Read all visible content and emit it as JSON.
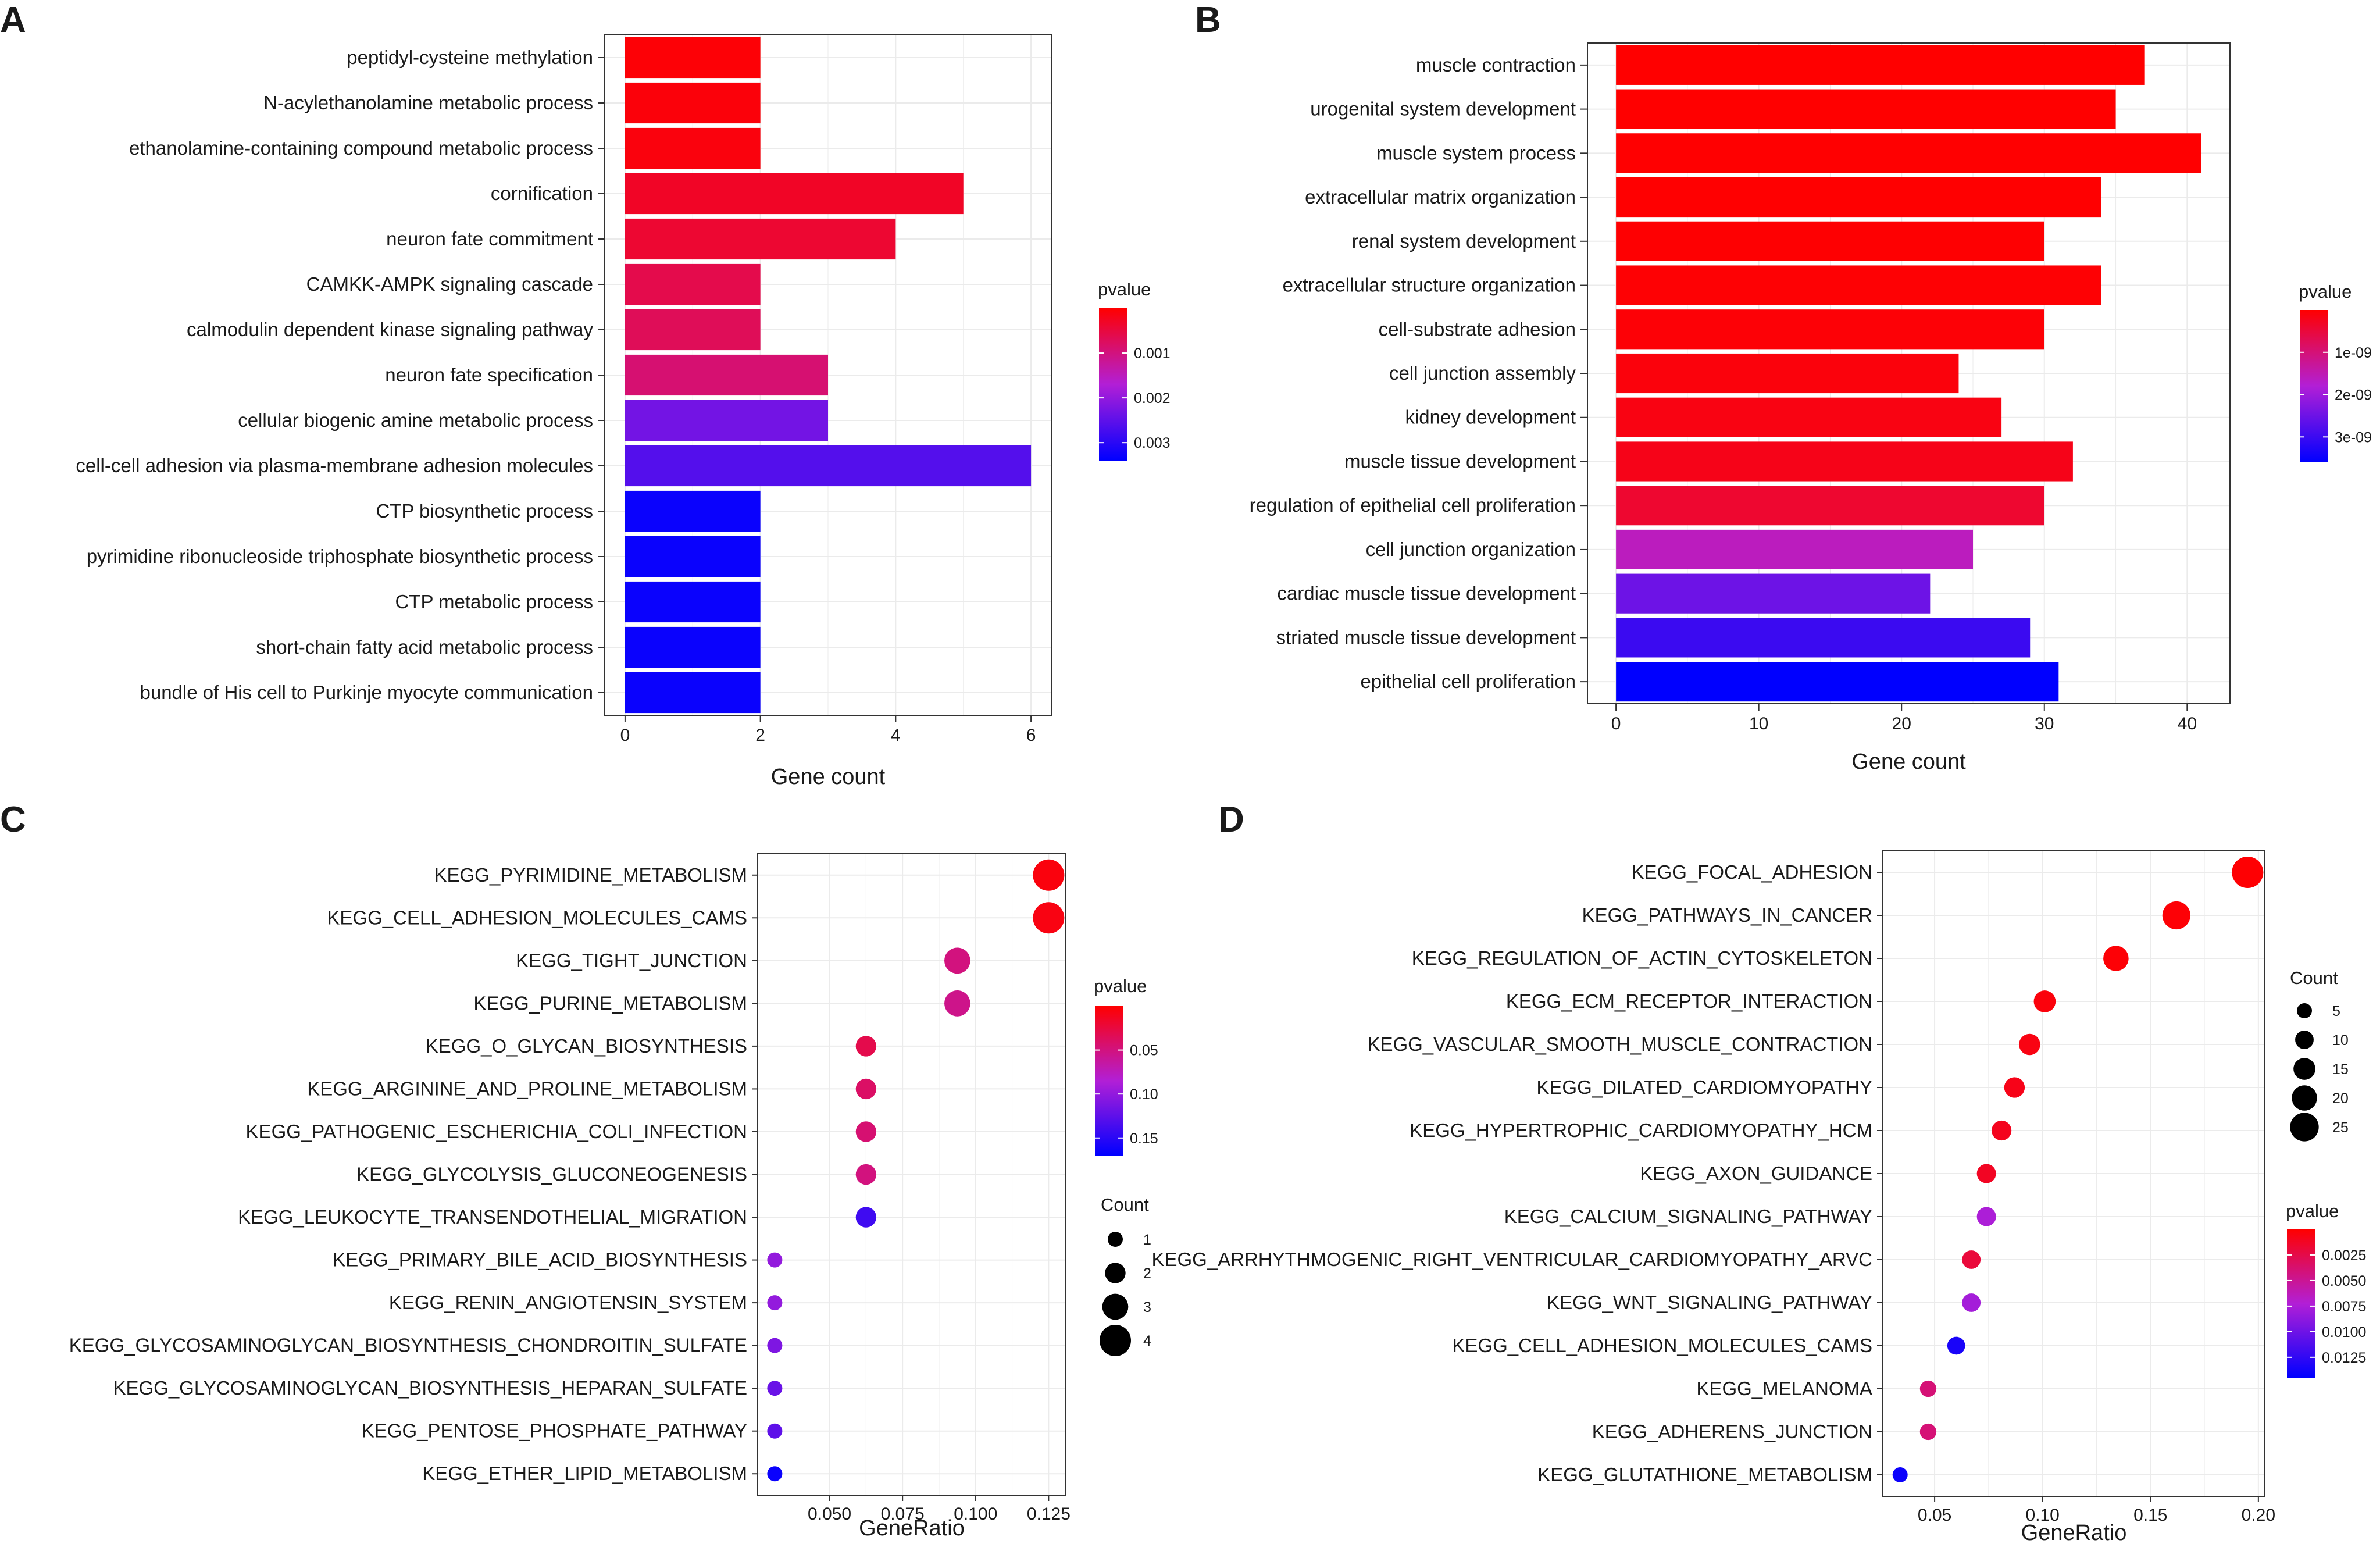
{
  "figure": {
    "panel_letters": [
      "A",
      "B",
      "C",
      "D"
    ]
  },
  "colors": {
    "low_pvalue": "#ff0000",
    "mid_pvalue": "#b21fd6",
    "high_pvalue": "#0000ff",
    "grid": "#ebebeb",
    "panel_border": "#333333"
  },
  "chart_data": [
    {
      "panel": "A",
      "type": "bar",
      "orientation": "horizontal",
      "categories": [
        "peptidyl-cysteine methylation",
        "N-acylethanolamine metabolic process",
        "ethanolamine-containing compound metabolic process",
        "cornification",
        "neuron fate commitment",
        "CAMKK-AMPK signaling cascade",
        "calmodulin dependent kinase signaling pathway",
        "neuron fate specification",
        "cellular biogenic amine metabolic process",
        "cell-cell adhesion via plasma-membrane adhesion molecules",
        "CTP biosynthetic process",
        "pyrimidine ribonucleoside triphosphate biosynthetic process",
        "CTP metabolic process",
        "short-chain fatty acid metabolic process",
        "bundle of His cell to Purkinje myocyte communication"
      ],
      "values": [
        2,
        2,
        2,
        5,
        4,
        2,
        2,
        3,
        3,
        6,
        2,
        2,
        2,
        2,
        2
      ],
      "pvalues": [
        5e-05,
        8e-05,
        0.0001,
        0.0003,
        0.0004,
        0.0006,
        0.0007,
        0.0009,
        0.0023,
        0.0026,
        0.0033,
        0.0033,
        0.0033,
        0.0033,
        0.0033
      ],
      "xlabel": "Gene count",
      "xlim": [
        -0.3,
        6.3
      ],
      "xticks": [
        0,
        2,
        4,
        6
      ],
      "xtick_labels": [
        "0",
        "2",
        "4",
        "6"
      ],
      "legend": {
        "title": "pvalue",
        "range": [
          0.0,
          0.0034
        ],
        "ticks": [
          0.001,
          0.002,
          0.003
        ],
        "tick_labels": [
          "0.001",
          "0.002",
          "0.003"
        ]
      }
    },
    {
      "panel": "B",
      "type": "bar",
      "orientation": "horizontal",
      "categories": [
        "muscle contraction",
        "urogenital system development",
        "muscle system process",
        "extracellular matrix organization",
        "renal system development",
        "extracellular structure organization",
        "cell-substrate adhesion",
        "cell junction assembly",
        "kidney development",
        "muscle tissue development",
        "regulation of epithelial cell proliferation",
        "cell junction organization",
        "cardiac muscle tissue development",
        "striated muscle tissue development",
        "epithelial cell proliferation"
      ],
      "values": [
        37,
        35,
        41,
        34,
        30,
        34,
        30,
        24,
        27,
        32,
        30,
        25,
        22,
        29,
        31
      ],
      "pvalues": [
        1e-12,
        2e-12,
        5e-12,
        1e-11,
        2e-11,
        3e-11,
        5e-11,
        1e-10,
        1.5e-10,
        2e-10,
        4e-10,
        1.6e-09,
        2.5e-09,
        3e-09,
        3.6e-09
      ],
      "xlabel": "Gene count",
      "xlim": [
        -2,
        43
      ],
      "xticks": [
        0,
        10,
        20,
        30,
        40
      ],
      "xtick_labels": [
        "0",
        "10",
        "20",
        "30",
        "40"
      ],
      "legend": {
        "title": "pvalue",
        "range": [
          0.0,
          3.6e-09
        ],
        "ticks": [
          1e-09,
          2e-09,
          3e-09
        ],
        "tick_labels": [
          "1e-09",
          "2e-09",
          "3e-09"
        ]
      }
    },
    {
      "panel": "C",
      "type": "scatter",
      "categories": [
        "KEGG_PYRIMIDINE_METABOLISM",
        "KEGG_CELL_ADHESION_MOLECULES_CAMS",
        "KEGG_TIGHT_JUNCTION",
        "KEGG_PURINE_METABOLISM",
        "KEGG_O_GLYCAN_BIOSYNTHESIS",
        "KEGG_ARGININE_AND_PROLINE_METABOLISM",
        "KEGG_PATHOGENIC_ESCHERICHIA_COLI_INFECTION",
        "KEGG_GLYCOLYSIS_GLUCONEOGENESIS",
        "KEGG_LEUKOCYTE_TRANSENDOTHELIAL_MIGRATION",
        "KEGG_PRIMARY_BILE_ACID_BIOSYNTHESIS",
        "KEGG_RENIN_ANGIOTENSIN_SYSTEM",
        "KEGG_GLYCOSAMINOGLYCAN_BIOSYNTHESIS_CHONDROITIN_SULFATE",
        "KEGG_GLYCOSAMINOGLYCAN_BIOSYNTHESIS_HEPARAN_SULFATE",
        "KEGG_PENTOSE_PHOSPHATE_PATHWAY",
        "KEGG_ETHER_LIPID_METABOLISM"
      ],
      "gene_ratio": [
        0.125,
        0.125,
        0.09375,
        0.09375,
        0.0625,
        0.0625,
        0.0625,
        0.0625,
        0.0625,
        0.03125,
        0.03125,
        0.03125,
        0.03125,
        0.03125,
        0.03125
      ],
      "counts": [
        4,
        4,
        3,
        3,
        2,
        2,
        2,
        2,
        2,
        1,
        1,
        1,
        1,
        1,
        1
      ],
      "pvalues": [
        0.005,
        0.007,
        0.05,
        0.055,
        0.03,
        0.04,
        0.045,
        0.05,
        0.14,
        0.1,
        0.1,
        0.11,
        0.12,
        0.125,
        0.165
      ],
      "xlabel": "GeneRatio",
      "xlim": [
        0.0254,
        0.1309
      ],
      "xticks": [
        0.05,
        0.075,
        0.1,
        0.125
      ],
      "xtick_labels": [
        "0.050",
        "0.075",
        "0.100",
        "0.125"
      ],
      "color_legend": {
        "title": "pvalue",
        "range": [
          0.0,
          0.17
        ],
        "ticks": [
          0.05,
          0.1,
          0.15
        ],
        "tick_labels": [
          "0.05",
          "0.10",
          "0.15"
        ]
      },
      "size_legend": {
        "title": "Count",
        "values": [
          1,
          2,
          3,
          4
        ],
        "labels": [
          "1",
          "2",
          "3",
          "4"
        ]
      },
      "size_range": [
        1,
        4
      ]
    },
    {
      "panel": "D",
      "type": "scatter",
      "categories": [
        "KEGG_FOCAL_ADHESION",
        "KEGG_PATHWAYS_IN_CANCER",
        "KEGG_REGULATION_OF_ACTIN_CYTOSKELETON",
        "KEGG_ECM_RECEPTOR_INTERACTION",
        "KEGG_VASCULAR_SMOOTH_MUSCLE_CONTRACTION",
        "KEGG_DILATED_CARDIOMYOPATHY",
        "KEGG_HYPERTROPHIC_CARDIOMYOPATHY_HCM",
        "KEGG_AXON_GUIDANCE",
        "KEGG_CALCIUM_SIGNALING_PATHWAY",
        "KEGG_ARRHYTHMOGENIC_RIGHT_VENTRICULAR_CARDIOMYOPATHY_ARVC",
        "KEGG_WNT_SIGNALING_PATHWAY",
        "KEGG_CELL_ADHESION_MOLECULES_CAMS",
        "KEGG_MELANOMA",
        "KEGG_ADHERENS_JUNCTION",
        "KEGG_GLUTATHIONE_METABOLISM"
      ],
      "gene_ratio": [
        0.195,
        0.162,
        0.134,
        0.101,
        0.094,
        0.087,
        0.081,
        0.074,
        0.074,
        0.067,
        0.067,
        0.06,
        0.047,
        0.047,
        0.034
      ],
      "counts": [
        29,
        24,
        20,
        15,
        14,
        13,
        12,
        11,
        11,
        10,
        10,
        9,
        7,
        7,
        5
      ],
      "pvalues": [
        0.0001,
        0.0002,
        0.0002,
        0.0004,
        0.0006,
        0.0008,
        0.001,
        0.0012,
        0.0075,
        0.002,
        0.0078,
        0.0135,
        0.004,
        0.004,
        0.014
      ],
      "xlabel": "GeneRatio",
      "xlim": [
        0.026,
        0.203
      ],
      "xticks": [
        0.05,
        0.1,
        0.15,
        0.2
      ],
      "xtick_labels": [
        "0.05",
        "0.10",
        "0.15",
        "0.20"
      ],
      "color_legend": {
        "title": "pvalue",
        "range": [
          0.0,
          0.0145
        ],
        "ticks": [
          0.0025,
          0.005,
          0.0075,
          0.01,
          0.0125
        ],
        "tick_labels": [
          "0.0025",
          "0.0050",
          "0.0075",
          "0.0100",
          "0.0125"
        ]
      },
      "size_legend": {
        "title": "Count",
        "values": [
          5,
          10,
          15,
          20,
          25
        ],
        "labels": [
          "5",
          "10",
          "15",
          "20",
          "25"
        ]
      },
      "size_range": [
        5,
        29
      ]
    }
  ]
}
